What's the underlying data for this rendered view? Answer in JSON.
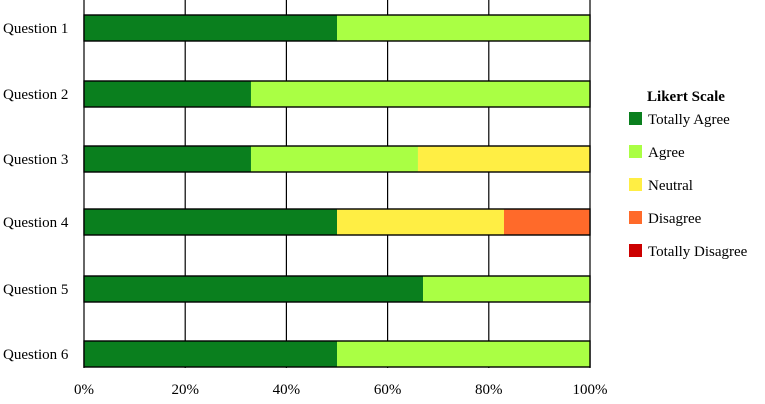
{
  "chart_data": {
    "type": "bar",
    "orientation": "horizontal",
    "stacked": true,
    "categories": [
      "Question 1",
      "Question 2",
      "Question 3",
      "Question 4",
      "Question 5",
      "Question 6"
    ],
    "series": [
      {
        "name": "Totally Agree",
        "color": "#0a7f1e",
        "values": [
          50,
          33,
          33,
          50,
          67,
          50
        ]
      },
      {
        "name": "Agree",
        "color": "#aaff44",
        "values": [
          50,
          67,
          33,
          0,
          33,
          50
        ]
      },
      {
        "name": "Neutral",
        "color": "#ffee44",
        "values": [
          0,
          0,
          34,
          33,
          0,
          0
        ]
      },
      {
        "name": "Disagree",
        "color": "#ff6a2a",
        "values": [
          0,
          0,
          0,
          17,
          0,
          0
        ]
      },
      {
        "name": "Totally Disagree",
        "color": "#cc0000",
        "values": [
          0,
          0,
          0,
          0,
          0,
          0
        ]
      }
    ],
    "x_ticks": [
      "0%",
      "20%",
      "40%",
      "60%",
      "80%",
      "100%"
    ],
    "xlim": [
      0,
      100
    ],
    "grid": true,
    "legend": {
      "title": "Likert Scale",
      "placement": "right"
    }
  }
}
